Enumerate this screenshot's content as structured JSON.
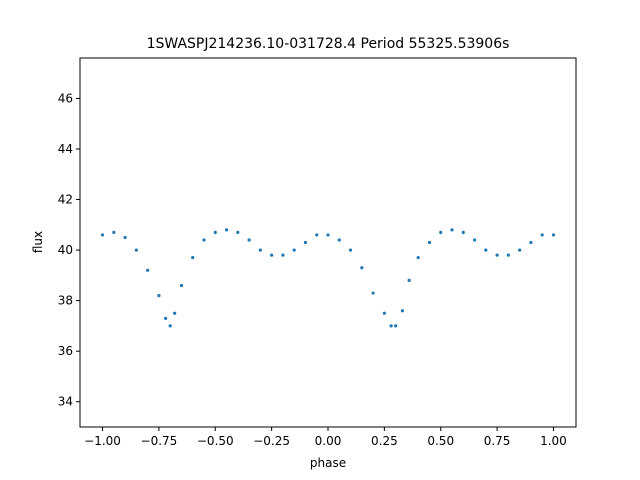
{
  "chart_data": {
    "type": "scatter",
    "title": "1SWASPJ214236.10-031728.4 Period 55325.53906s",
    "xlabel": "phase",
    "ylabel": "flux",
    "xlim": [
      -1.1,
      1.1
    ],
    "ylim": [
      33.0,
      47.6
    ],
    "x_ticks": [
      -1.0,
      -0.75,
      -0.5,
      -0.25,
      0.0,
      0.25,
      0.5,
      0.75,
      1.0
    ],
    "x_tick_labels": [
      "−1.00",
      "−0.75",
      "−0.50",
      "−0.25",
      "0.00",
      "0.25",
      "0.50",
      "0.75",
      "1.00"
    ],
    "y_ticks": [
      34,
      36,
      38,
      40,
      42,
      44,
      46
    ],
    "y_tick_labels": [
      "34",
      "36",
      "38",
      "40",
      "42",
      "44",
      "46"
    ],
    "grid": false,
    "legend": "none",
    "marker_color": "#1f77b4",
    "series": [
      {
        "points": [
          [
            -1.0,
            40.6
          ],
          [
            -0.95,
            40.7
          ],
          [
            -0.9,
            40.5
          ],
          [
            -0.85,
            40.0
          ],
          [
            -0.8,
            39.2
          ],
          [
            -0.75,
            38.2
          ],
          [
            -0.72,
            37.3
          ],
          [
            -0.7,
            37.0
          ],
          [
            -0.68,
            37.5
          ],
          [
            -0.65,
            38.6
          ],
          [
            -0.6,
            39.7
          ],
          [
            -0.55,
            40.4
          ],
          [
            -0.5,
            40.7
          ],
          [
            -0.45,
            40.8
          ],
          [
            -0.4,
            40.7
          ],
          [
            -0.35,
            40.4
          ],
          [
            -0.3,
            40.0
          ],
          [
            -0.25,
            39.8
          ],
          [
            -0.2,
            39.8
          ],
          [
            -0.15,
            40.0
          ],
          [
            -0.1,
            40.3
          ],
          [
            -0.05,
            40.6
          ],
          [
            0.0,
            40.6
          ],
          [
            0.05,
            40.4
          ],
          [
            0.1,
            40.0
          ],
          [
            0.15,
            39.3
          ],
          [
            0.2,
            38.3
          ],
          [
            0.25,
            37.5
          ],
          [
            0.28,
            37.0
          ],
          [
            0.3,
            37.0
          ],
          [
            0.33,
            37.6
          ],
          [
            0.36,
            38.8
          ],
          [
            0.4,
            39.7
          ],
          [
            0.45,
            40.3
          ],
          [
            0.5,
            40.7
          ],
          [
            0.55,
            40.8
          ],
          [
            0.6,
            40.7
          ],
          [
            0.65,
            40.4
          ],
          [
            0.7,
            40.0
          ],
          [
            0.75,
            39.8
          ],
          [
            0.8,
            39.8
          ],
          [
            0.85,
            40.0
          ],
          [
            0.9,
            40.3
          ],
          [
            0.95,
            40.6
          ],
          [
            1.0,
            40.6
          ]
        ]
      }
    ]
  }
}
